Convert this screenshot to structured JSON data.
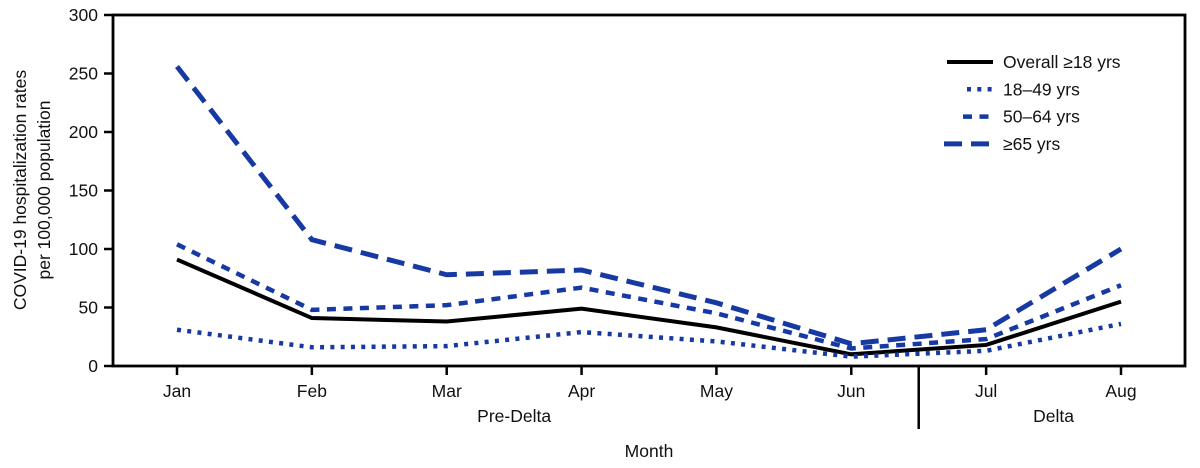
{
  "chart_data": {
    "type": "line",
    "title": "",
    "xlabel": "Month",
    "ylabel_lines": [
      "COVID-19 hospitalization rates",
      "per 100,000 population"
    ],
    "x_categories": [
      "Jan",
      "Feb",
      "Mar",
      "Apr",
      "May",
      "Jun",
      "Jul",
      "Aug"
    ],
    "ylim": [
      0,
      300
    ],
    "yticks": [
      0,
      50,
      100,
      150,
      200,
      250,
      300
    ],
    "grid": false,
    "legend_position": "top-right-inside",
    "colors": {
      "blue": "#1639a3",
      "black": "#000000"
    },
    "series": [
      {
        "id": "overall-ge18",
        "name": "Overall ≥18 yrs",
        "color": "#000000",
        "line_style": "solid",
        "values": [
          91,
          41,
          38,
          49,
          33,
          10,
          18,
          55
        ]
      },
      {
        "id": "18-49",
        "name": "18–49 yrs",
        "color": "#1639a3",
        "line_style": "dotted",
        "values": [
          31,
          16,
          17,
          29,
          21,
          8,
          13,
          36
        ]
      },
      {
        "id": "50-64",
        "name": "50–64 yrs",
        "color": "#1639a3",
        "line_style": "dashed",
        "values": [
          104,
          48,
          52,
          67,
          45,
          15,
          23,
          69
        ]
      },
      {
        "id": "ge65",
        "name": "≥65 yrs",
        "color": "#1639a3",
        "line_style": "long-dash",
        "values": [
          256,
          108,
          78,
          82,
          54,
          19,
          31,
          100
        ]
      }
    ],
    "period_annotations": [
      {
        "label": "Pre-Delta",
        "from_month": "Jan",
        "to_month": "Jun"
      },
      {
        "label": "Delta",
        "from_month": "Jul",
        "to_month": "Aug"
      }
    ],
    "divider_between": [
      "Jun",
      "Jul"
    ]
  }
}
